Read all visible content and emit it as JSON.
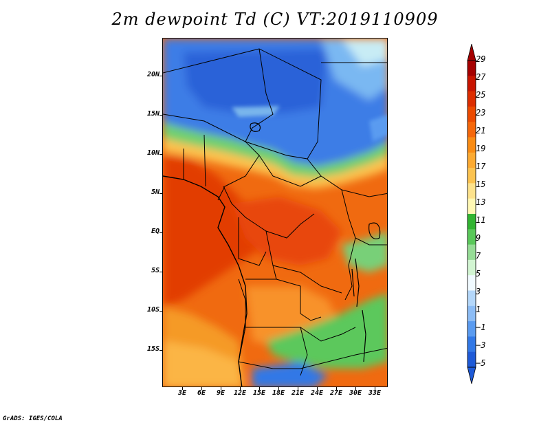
{
  "title": "2m dewpoint Td (C) VT:2019110909",
  "footer": "GrADS: IGES/COLA",
  "map": {
    "lat_labels": [
      "20N",
      "15N",
      "10N",
      "5N",
      "EQ",
      "5S",
      "10S",
      "15S"
    ],
    "lon_labels": [
      "3E",
      "6E",
      "9E",
      "12E",
      "15E",
      "18E",
      "21E",
      "24E",
      "27E",
      "30E",
      "33E"
    ]
  },
  "colorbar": {
    "labels": [
      "29",
      "27",
      "25",
      "23",
      "21",
      "19",
      "17",
      "15",
      "13",
      "11",
      "9",
      "7",
      "5",
      "3",
      "1",
      "−1",
      "−3",
      "−5"
    ],
    "colors": [
      "#a50000",
      "#c81400",
      "#dc2d00",
      "#ec4a00",
      "#f5670a",
      "#fa8c14",
      "#fcaa32",
      "#fcc350",
      "#fde28c",
      "#fff8b4",
      "#32b432",
      "#5ac85a",
      "#96dc96",
      "#d2f5d2",
      "#f0faff",
      "#b4d7fa",
      "#8cbcf5",
      "#5a9bf0",
      "#3278e6",
      "#1e5ad7"
    ]
  }
}
